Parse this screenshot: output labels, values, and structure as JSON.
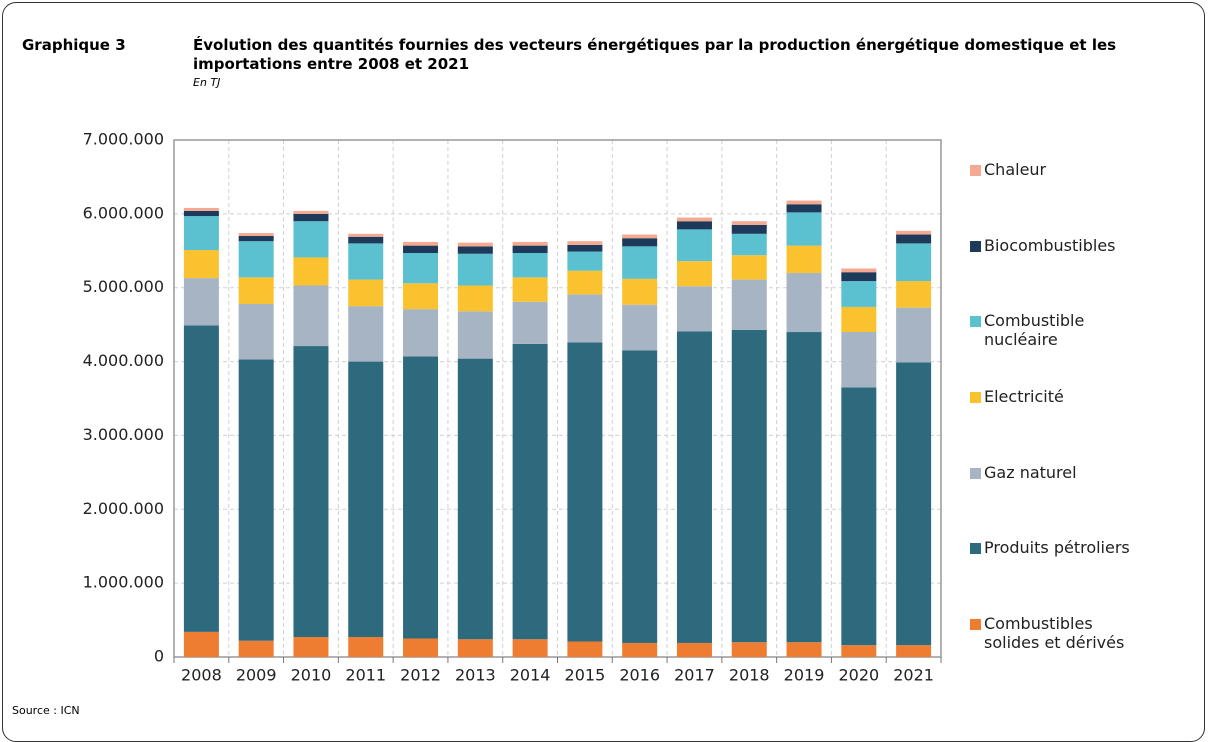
{
  "chart_data": {
    "type": "stacked-bar",
    "label": "Graphique 3",
    "title": "Évolution des quantités fournies des vecteurs énergétiques par la production énergétique domestique et les importations entre 2008 et 2021",
    "subtitle": "En TJ",
    "source": "Source : ICN",
    "categories": [
      "2008",
      "2009",
      "2010",
      "2011",
      "2012",
      "2013",
      "2014",
      "2015",
      "2016",
      "2017",
      "2018",
      "2019",
      "2020",
      "2021"
    ],
    "series": [
      {
        "name": "Combustibles solides et dérivés",
        "color": "#ee7d31",
        "values": [
          340000,
          220000,
          270000,
          270000,
          250000,
          240000,
          240000,
          210000,
          190000,
          190000,
          200000,
          200000,
          160000,
          160000
        ]
      },
      {
        "name": "Produits pétroliers",
        "color": "#2e6a7e",
        "values": [
          4150000,
          3810000,
          3940000,
          3730000,
          3820000,
          3800000,
          4000000,
          4050000,
          3960000,
          4220000,
          4230000,
          4200000,
          3490000,
          3830000
        ]
      },
      {
        "name": "Gaz naturel",
        "color": "#a6b4c4",
        "values": [
          640000,
          750000,
          820000,
          750000,
          640000,
          640000,
          570000,
          650000,
          620000,
          610000,
          680000,
          800000,
          750000,
          740000
        ]
      },
      {
        "name": "Electricité",
        "color": "#fbc230",
        "values": [
          380000,
          360000,
          380000,
          360000,
          350000,
          350000,
          330000,
          320000,
          350000,
          340000,
          330000,
          370000,
          340000,
          360000
        ]
      },
      {
        "name": "Combustible nucléaire",
        "color": "#5bc0cf",
        "values": [
          460000,
          490000,
          490000,
          490000,
          410000,
          430000,
          330000,
          260000,
          440000,
          430000,
          290000,
          450000,
          350000,
          510000
        ]
      },
      {
        "name": "Biocombustibles",
        "color": "#1d3a5a",
        "values": [
          70000,
          70000,
          100000,
          90000,
          100000,
          100000,
          100000,
          90000,
          110000,
          110000,
          120000,
          110000,
          120000,
          120000
        ]
      },
      {
        "name": "Chaleur",
        "color": "#f4a990",
        "values": [
          40000,
          40000,
          40000,
          40000,
          50000,
          50000,
          50000,
          50000,
          50000,
          50000,
          50000,
          50000,
          50000,
          50000
        ]
      }
    ],
    "ylim": [
      0,
      7000000
    ],
    "yticks": [
      0,
      {
        "value": 1000000,
        "label": "1.000.000"
      },
      {
        "value": 2000000,
        "label": "2.000.000"
      },
      {
        "value": 3000000,
        "label": "3.000.000"
      },
      {
        "value": 4000000,
        "label": "4.000.000"
      },
      {
        "value": 5000000,
        "label": "5.000.000"
      },
      {
        "value": 6000000,
        "label": "6.000.000"
      },
      {
        "value": 7000000,
        "label": "7.000.000"
      }
    ],
    "grid": true
  }
}
